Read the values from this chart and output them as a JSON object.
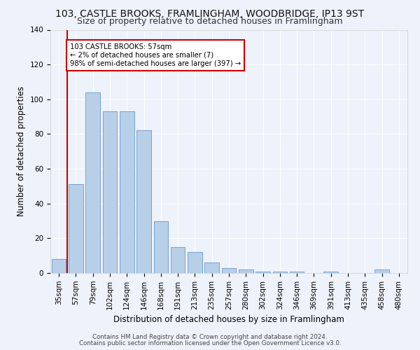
{
  "title1": "103, CASTLE BROOKS, FRAMLINGHAM, WOODBRIDGE, IP13 9ST",
  "title2": "Size of property relative to detached houses in Framlingham",
  "xlabel": "Distribution of detached houses by size in Framlingham",
  "ylabel": "Number of detached properties",
  "categories": [
    "35sqm",
    "57sqm",
    "79sqm",
    "102sqm",
    "124sqm",
    "146sqm",
    "168sqm",
    "191sqm",
    "213sqm",
    "235sqm",
    "257sqm",
    "280sqm",
    "302sqm",
    "324sqm",
    "346sqm",
    "369sqm",
    "391sqm",
    "413sqm",
    "435sqm",
    "458sqm",
    "480sqm"
  ],
  "values": [
    8,
    51,
    104,
    93,
    93,
    82,
    30,
    15,
    12,
    6,
    3,
    2,
    1,
    1,
    1,
    0,
    1,
    0,
    0,
    2,
    0
  ],
  "bar_color": "#b8cfe8",
  "bar_edgecolor": "#6699cc",
  "highlight_index": 1,
  "highlight_color": "#cc0000",
  "annotation_text": "103 CASTLE BROOKS: 57sqm\n← 2% of detached houses are smaller (7)\n98% of semi-detached houses are larger (397) →",
  "annotation_box_color": "#ffffff",
  "annotation_box_edgecolor": "#cc0000",
  "ylim": [
    0,
    140
  ],
  "yticks": [
    0,
    20,
    40,
    60,
    80,
    100,
    120,
    140
  ],
  "footer1": "Contains HM Land Registry data © Crown copyright and database right 2024.",
  "footer2": "Contains public sector information licensed under the Open Government Licence v3.0.",
  "background_color": "#eef2fb",
  "grid_color": "#ffffff",
  "title1_fontsize": 10,
  "title2_fontsize": 9,
  "xlabel_fontsize": 8.5,
  "ylabel_fontsize": 8.5,
  "tick_fontsize": 7.5,
  "footer_fontsize": 6.2
}
